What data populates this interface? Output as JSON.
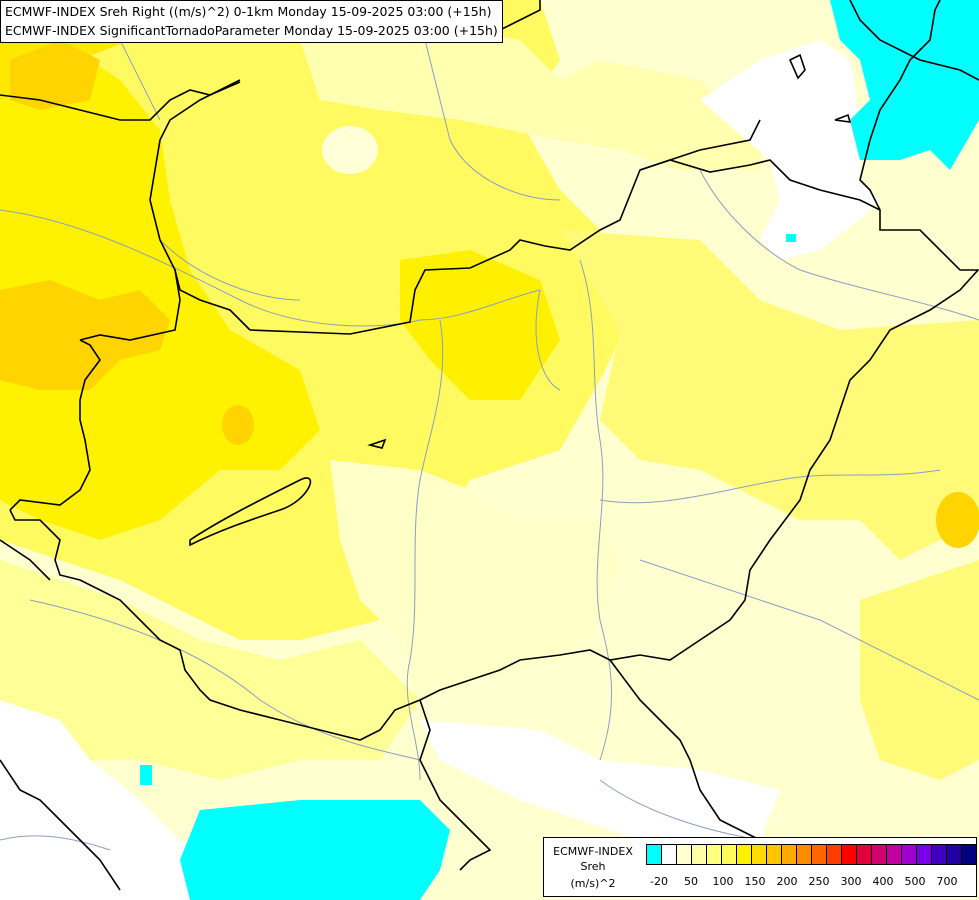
{
  "header": {
    "line1": "ECMWF-INDEX Sreh Right ((m/s)^2) 0-1km Monday 15-09-2025 03:00 (+15h)",
    "line2": "ECMWF-INDEX SignificantTornadoParameter Monday 15-09-2025 03:00 (+15h)"
  },
  "legend": {
    "title": "ECMWF-INDEX",
    "subtitle": "Sreh",
    "unit": "(m/s)^2",
    "colors": [
      "#00ffff",
      "#ffffff",
      "#ffffd0",
      "#ffffa8",
      "#ffff80",
      "#fffc58",
      "#fff000",
      "#ffdc00",
      "#ffc400",
      "#ffaa00",
      "#ff8c00",
      "#ff6600",
      "#ff3c00",
      "#ff0000",
      "#e0003c",
      "#d0006e",
      "#c000a0",
      "#a000d0",
      "#7800e8",
      "#4000c0",
      "#2000a0",
      "#000080"
    ],
    "ticks": [
      "-20",
      "50",
      "100",
      "150",
      "200",
      "250",
      "300",
      "400",
      "500",
      "700"
    ]
  }
}
